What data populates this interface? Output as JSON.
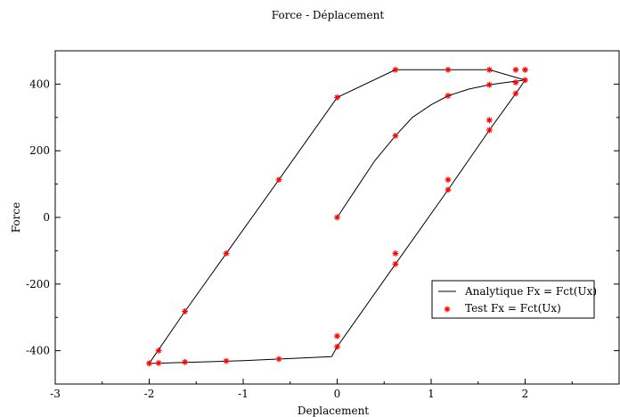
{
  "chart_data": {
    "type": "line",
    "title": "Force - Déplacement",
    "xlabel": "Deplacement",
    "ylabel": "Force",
    "xlim": [
      -3,
      3
    ],
    "ylim": [
      -500,
      500
    ],
    "xticks": [
      -3,
      -2,
      -1,
      0,
      1,
      2
    ],
    "yticks": [
      -400,
      -200,
      0,
      200,
      400
    ],
    "grid": false,
    "legend_position": "bottom-right",
    "colors": {
      "line": "#000000",
      "marker": "#ff0000",
      "axis": "#000000"
    },
    "series": [
      {
        "name": "Analytique Fx = Fct(Ux)",
        "style": "line",
        "x": [
          0,
          0.2,
          0.4,
          0.62,
          0.8,
          1.0,
          1.18,
          1.4,
          1.62,
          1.8,
          2.0,
          1.62,
          1.18,
          0.62,
          0.0,
          -0.62,
          -1.18,
          -1.62,
          -2.0,
          -1.95,
          -1.0,
          -0.06,
          0.0,
          0.62,
          1.18,
          1.62,
          1.9,
          2.0
        ],
        "y": [
          0,
          85,
          170,
          245,
          300,
          338,
          365,
          385,
          398,
          405,
          412,
          443,
          443,
          443,
          360,
          113,
          -108,
          -282,
          -438,
          -438,
          -430,
          -418,
          -388,
          -140,
          83,
          262,
          372,
          412
        ]
      },
      {
        "name": "Test Fx = Fct(Ux)",
        "style": "markers",
        "marker": "asterisk",
        "x": [
          0,
          0.62,
          1.18,
          1.62,
          2.0,
          1.9,
          1.62,
          1.18,
          0.62,
          0.0,
          -0.62,
          -1.18,
          -1.62,
          -1.9,
          -2.0,
          -1.9,
          -1.62,
          -1.18,
          -0.62,
          0.0,
          0.0,
          0.62,
          0.62,
          1.18,
          1.18,
          1.62,
          1.62,
          1.9,
          1.9,
          2.0
        ],
        "y": [
          0,
          245,
          365,
          398,
          443,
          443,
          443,
          443,
          443,
          360,
          113,
          -108,
          -282,
          -400,
          -438,
          -437,
          -434,
          -431,
          -425,
          -356,
          -388,
          -108,
          -140,
          113,
          83,
          292,
          262,
          405,
          372,
          412
        ]
      }
    ]
  }
}
